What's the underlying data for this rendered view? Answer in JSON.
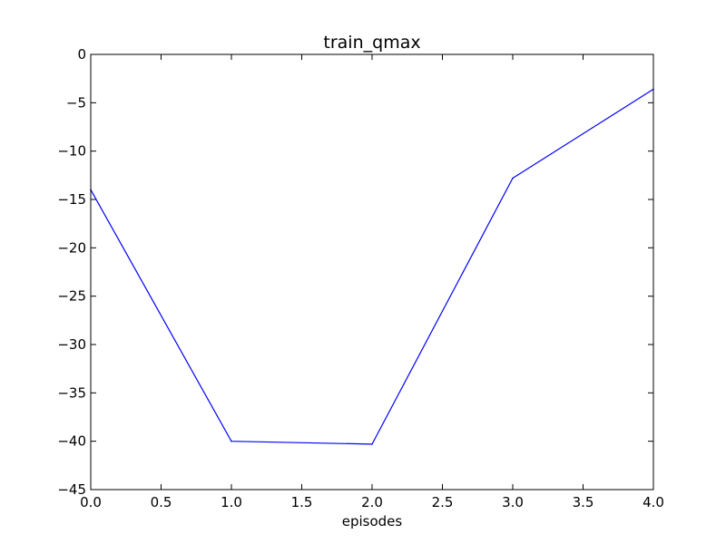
{
  "chart_data": {
    "type": "line",
    "title": "train_qmax",
    "xlabel": "episodes",
    "ylabel": "",
    "xlim": [
      0,
      4
    ],
    "ylim": [
      -45,
      0
    ],
    "x_ticks": [
      0,
      0.5,
      1,
      1.5,
      2,
      2.5,
      3,
      3.5,
      4
    ],
    "x_tick_labels": [
      "0.0",
      "0.5",
      "1.0",
      "1.5",
      "2.0",
      "2.5",
      "3.0",
      "3.5",
      "4.0"
    ],
    "y_ticks": [
      0,
      -5,
      -10,
      -15,
      -20,
      -25,
      -30,
      -35,
      -40,
      -45
    ],
    "y_tick_labels": [
      "0",
      "−5",
      "−10",
      "−15",
      "−20",
      "−25",
      "−30",
      "−35",
      "−40",
      "−45"
    ],
    "grid": false,
    "series": [
      {
        "color": "#0000ff",
        "x": [
          0,
          1,
          2,
          3,
          4
        ],
        "y": [
          -14.0,
          -40.0,
          -40.3,
          -12.8,
          -3.6
        ]
      }
    ]
  }
}
